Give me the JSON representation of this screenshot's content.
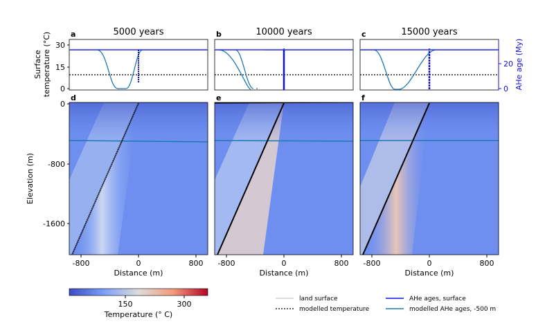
{
  "chart_data": {
    "type": "line",
    "panels_top": [
      {
        "letter": "a",
        "title": "5000 years"
      },
      {
        "letter": "b",
        "title": "10000 years"
      },
      {
        "letter": "c",
        "title": "15000 years"
      }
    ],
    "panels_bottom": [
      {
        "letter": "d"
      },
      {
        "letter": "e"
      },
      {
        "letter": "f"
      }
    ],
    "top_axis": {
      "ylabel_line1": "Surface",
      "ylabel_line2": "temperature (°C)",
      "yticks": [
        "30",
        "15",
        "0"
      ],
      "ylim": [
        0,
        33
      ],
      "right_label": "AHe age (My)",
      "right_ticks": [
        "20",
        "0"
      ],
      "right_ylim": [
        0,
        40
      ]
    },
    "bottom_axis": {
      "xlabel": "Distance (m)",
      "ylabel": "Elevation (m)",
      "xticks": [
        "-800",
        "0",
        "800"
      ],
      "yticks": [
        "0",
        "-800",
        "-1600"
      ],
      "xlim": [
        -1000,
        1000
      ],
      "ylim": [
        -2000,
        0
      ]
    },
    "series": {
      "land_surface": {
        "value": 27
      },
      "modelled_temperature": {
        "value": 10
      },
      "ahe_surface": {
        "value": 27
      }
    },
    "modelled_ahe_500m_dip_center": [
      -300,
      -60,
      -60
    ],
    "fault_dip_line": [
      {
        "x_top": 0,
        "x_bottom": -960
      },
      {
        "x_top": 0,
        "x_bottom": -960
      },
      {
        "x_top": 0,
        "x_bottom": -960
      }
    ],
    "colorbar": {
      "label": "Temperature (° C)",
      "ticks": [
        "150",
        "300"
      ],
      "tick_values": [
        150,
        300
      ],
      "range": [
        10,
        340
      ]
    },
    "legend": [
      {
        "label": "land surface",
        "color": "#bbbbbb",
        "dash": "none"
      },
      {
        "label": "modelled temperature",
        "color": "#000000",
        "dash": "dot"
      },
      {
        "label": "AHe ages, surface",
        "color": "#1010e0",
        "dash": "none"
      },
      {
        "label": "modelled AHe ages, -500 m",
        "color": "#1f77b4",
        "dash": "none"
      }
    ]
  }
}
